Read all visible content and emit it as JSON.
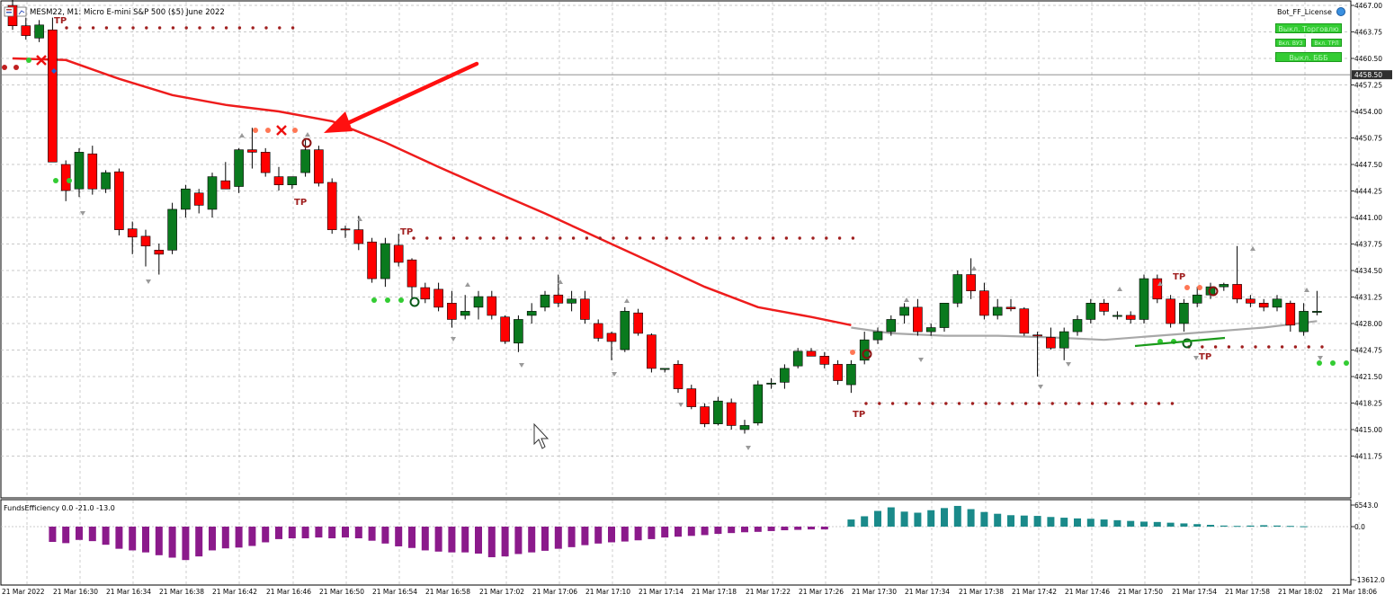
{
  "header": {
    "symbol_line": "MESM22, M1:  Micro E-mini S&P 500 ($5) June 2022"
  },
  "license_label": "Bot_FF_License",
  "panel_buttons": {
    "top": "Выкл. Торговлю",
    "left_small": "Вкл. ВУЗ",
    "right_small": "Вкл. ТРЛ",
    "bottom": "Выкл. БББ"
  },
  "indicator_label": "FundsEfficiency 0.0 -21.0 -13.0",
  "markers": {
    "tp": "TP"
  },
  "price_axis": {
    "ticks": [
      "4467.00",
      "4463.75",
      "4460.50",
      "4457.25",
      "4454.00",
      "4450.75",
      "4447.50",
      "4444.25",
      "4441.00",
      "4437.75",
      "4434.50",
      "4431.25",
      "4428.00",
      "4424.75",
      "4421.50",
      "4418.25",
      "4415.00",
      "4411.75"
    ],
    "current_price": "4458.50"
  },
  "indicator_axis": {
    "ticks": [
      "6543.0",
      "0.0",
      "-13612.0"
    ]
  },
  "time_axis": {
    "ticks": [
      "21 Mar 2022",
      "21 Mar 16:30",
      "21 Mar 16:34",
      "21 Mar 16:38",
      "21 Mar 16:42",
      "21 Mar 16:46",
      "21 Mar 16:50",
      "21 Mar 16:54",
      "21 Mar 16:58",
      "21 Mar 17:02",
      "21 Mar 17:06",
      "21 Mar 17:10",
      "21 Mar 17:14",
      "21 Mar 17:18",
      "21 Mar 17:22",
      "21 Mar 17:26",
      "21 Mar 17:30",
      "21 Mar 17:34",
      "21 Mar 17:38",
      "21 Mar 17:42",
      "21 Mar 17:46",
      "21 Mar 17:50",
      "21 Mar 17:54",
      "21 Mar 17:58",
      "21 Mar 18:02",
      "21 Mar 18:06"
    ]
  },
  "colors": {
    "bull": "#0a7a1e",
    "bear": "#ff0000",
    "ma": "#ee1c1c",
    "ma2": "#a8a8a8",
    "hist_pos": "#1a8a8a",
    "hist_neg": "#8b1a8b",
    "grid": "#b8b8b8",
    "tp": "#a02020"
  },
  "chart_data": [
    {
      "type": "candlestick",
      "ylim": [
        4409.5,
        4467.0
      ],
      "y_ticks": [
        4467.0,
        4463.75,
        4460.5,
        4457.25,
        4454.0,
        4450.75,
        4447.5,
        4444.25,
        4441.0,
        4437.75,
        4434.5,
        4431.25,
        4428.0,
        4424.75,
        4421.5,
        4418.25,
        4415.0,
        4411.75
      ],
      "current_price": 4458.5,
      "candles": [
        {
          "o": 4467.0,
          "h": 4467.8,
          "l": 4464.0,
          "c": 4464.5
        },
        {
          "o": 4464.5,
          "h": 4465.5,
          "l": 4462.8,
          "c": 4463.3
        },
        {
          "o": 4463.0,
          "h": 4465.2,
          "l": 4462.5,
          "c": 4464.6
        },
        {
          "o": 4464.0,
          "h": 4465.5,
          "l": 4448.0,
          "c": 4447.8
        },
        {
          "o": 4447.5,
          "h": 4448.0,
          "l": 4443.0,
          "c": 4444.3
        },
        {
          "o": 4444.5,
          "h": 4449.5,
          "l": 4443.5,
          "c": 4449.0
        },
        {
          "o": 4448.8,
          "h": 4449.8,
          "l": 4443.8,
          "c": 4444.5
        },
        {
          "o": 4444.5,
          "h": 4446.8,
          "l": 4444.0,
          "c": 4446.5
        },
        {
          "o": 4446.6,
          "h": 4447.0,
          "l": 4438.8,
          "c": 4439.5
        },
        {
          "o": 4439.6,
          "h": 4440.5,
          "l": 4436.5,
          "c": 4438.6
        },
        {
          "o": 4438.7,
          "h": 4439.5,
          "l": 4435.0,
          "c": 4437.5
        },
        {
          "o": 4437.0,
          "h": 4437.8,
          "l": 4434.0,
          "c": 4436.5
        },
        {
          "o": 4437.0,
          "h": 4442.8,
          "l": 4436.5,
          "c": 4442.0
        },
        {
          "o": 4442.0,
          "h": 4445.0,
          "l": 4441.0,
          "c": 4444.5
        },
        {
          "o": 4444.0,
          "h": 4444.5,
          "l": 4441.5,
          "c": 4442.5
        },
        {
          "o": 4442.0,
          "h": 4446.5,
          "l": 4441.0,
          "c": 4446.0
        },
        {
          "o": 4445.5,
          "h": 4447.8,
          "l": 4445.0,
          "c": 4444.5
        },
        {
          "o": 4444.8,
          "h": 4449.5,
          "l": 4444.0,
          "c": 4449.3
        },
        {
          "o": 4449.3,
          "h": 4452.0,
          "l": 4447.0,
          "c": 4449.0
        },
        {
          "o": 4449.0,
          "h": 4449.5,
          "l": 4446.0,
          "c": 4446.5
        },
        {
          "o": 4446.0,
          "h": 4447.2,
          "l": 4444.3,
          "c": 4445.0
        },
        {
          "o": 4445.0,
          "h": 4446.0,
          "l": 4444.5,
          "c": 4446.0
        },
        {
          "o": 4446.5,
          "h": 4450.5,
          "l": 4446.0,
          "c": 4449.3
        },
        {
          "o": 4449.3,
          "h": 4449.8,
          "l": 4444.8,
          "c": 4445.2
        },
        {
          "o": 4445.3,
          "h": 4445.8,
          "l": 4439.0,
          "c": 4439.5
        },
        {
          "o": 4439.6,
          "h": 4440.0,
          "l": 4438.5,
          "c": 4439.5
        },
        {
          "o": 4439.5,
          "h": 4441.2,
          "l": 4437.0,
          "c": 4437.8
        },
        {
          "o": 4438.0,
          "h": 4438.5,
          "l": 4433.0,
          "c": 4433.5
        },
        {
          "o": 4433.5,
          "h": 4438.5,
          "l": 4432.5,
          "c": 4437.8
        },
        {
          "o": 4437.6,
          "h": 4439.0,
          "l": 4435.0,
          "c": 4435.5
        },
        {
          "o": 4435.8,
          "h": 4436.0,
          "l": 4431.0,
          "c": 4432.5
        },
        {
          "o": 4432.4,
          "h": 4433.0,
          "l": 4430.5,
          "c": 4431.0
        },
        {
          "o": 4432.2,
          "h": 4433.0,
          "l": 4429.5,
          "c": 4430.0
        },
        {
          "o": 4430.5,
          "h": 4432.0,
          "l": 4427.5,
          "c": 4428.5
        },
        {
          "o": 4429.0,
          "h": 4431.5,
          "l": 4428.5,
          "c": 4429.5
        },
        {
          "o": 4430.0,
          "h": 4432.0,
          "l": 4428.5,
          "c": 4431.3
        },
        {
          "o": 4431.3,
          "h": 4432.0,
          "l": 4428.5,
          "c": 4429.0
        },
        {
          "o": 4428.8,
          "h": 4429.0,
          "l": 4425.5,
          "c": 4425.8
        },
        {
          "o": 4425.6,
          "h": 4429.0,
          "l": 4424.5,
          "c": 4428.5
        },
        {
          "o": 4429.0,
          "h": 4430.5,
          "l": 4428.0,
          "c": 4429.5
        },
        {
          "o": 4430.0,
          "h": 4432.0,
          "l": 4429.5,
          "c": 4431.5
        },
        {
          "o": 4431.5,
          "h": 4434.0,
          "l": 4430.0,
          "c": 4430.5
        },
        {
          "o": 4430.5,
          "h": 4432.0,
          "l": 4429.5,
          "c": 4431.0
        },
        {
          "o": 4431.0,
          "h": 4432.0,
          "l": 4428.0,
          "c": 4428.5
        },
        {
          "o": 4428.0,
          "h": 4428.5,
          "l": 4425.8,
          "c": 4426.2
        },
        {
          "o": 4426.8,
          "h": 4427.0,
          "l": 4423.5,
          "c": 4425.8
        },
        {
          "o": 4424.8,
          "h": 4430.0,
          "l": 4424.5,
          "c": 4429.5
        },
        {
          "o": 4429.3,
          "h": 4429.8,
          "l": 4426.5,
          "c": 4426.8
        },
        {
          "o": 4426.6,
          "h": 4426.8,
          "l": 4422.0,
          "c": 4422.5
        },
        {
          "o": 4422.5,
          "h": 4422.5,
          "l": 4422.0,
          "c": 4422.5
        },
        {
          "o": 4423.0,
          "h": 4423.5,
          "l": 4419.5,
          "c": 4420.0
        },
        {
          "o": 4420.0,
          "h": 4420.5,
          "l": 4417.5,
          "c": 4417.8
        },
        {
          "o": 4417.8,
          "h": 4418.2,
          "l": 4415.3,
          "c": 4415.7
        },
        {
          "o": 4415.7,
          "h": 4419.0,
          "l": 4415.5,
          "c": 4418.5
        },
        {
          "o": 4418.3,
          "h": 4418.8,
          "l": 4415.0,
          "c": 4415.5
        },
        {
          "o": 4415.0,
          "h": 4416.2,
          "l": 4414.5,
          "c": 4415.5
        },
        {
          "o": 4415.8,
          "h": 4421.0,
          "l": 4415.5,
          "c": 4420.5
        },
        {
          "o": 4420.6,
          "h": 4421.3,
          "l": 4420.0,
          "c": 4420.7
        },
        {
          "o": 4420.8,
          "h": 4423.0,
          "l": 4420.0,
          "c": 4422.5
        },
        {
          "o": 4422.8,
          "h": 4425.0,
          "l": 4422.5,
          "c": 4424.6
        },
        {
          "o": 4424.6,
          "h": 4425.0,
          "l": 4424.0,
          "c": 4424.0
        },
        {
          "o": 4424.0,
          "h": 4424.5,
          "l": 4422.5,
          "c": 4423.0
        },
        {
          "o": 4423.0,
          "h": 4423.5,
          "l": 4420.5,
          "c": 4421.0
        },
        {
          "o": 4420.5,
          "h": 4423.5,
          "l": 4419.5,
          "c": 4423.0
        },
        {
          "o": 4423.5,
          "h": 4427.0,
          "l": 4423.0,
          "c": 4426.0
        },
        {
          "o": 4426.0,
          "h": 4427.5,
          "l": 4425.5,
          "c": 4427.0
        },
        {
          "o": 4427.0,
          "h": 4429.0,
          "l": 4426.5,
          "c": 4428.5
        },
        {
          "o": 4429.0,
          "h": 4430.5,
          "l": 4428.0,
          "c": 4430.0
        },
        {
          "o": 4430.0,
          "h": 4431.0,
          "l": 4426.5,
          "c": 4427.0
        },
        {
          "o": 4427.0,
          "h": 4428.0,
          "l": 4426.5,
          "c": 4427.5
        },
        {
          "o": 4427.5,
          "h": 4430.5,
          "l": 4427.0,
          "c": 4430.5
        },
        {
          "o": 4430.5,
          "h": 4434.5,
          "l": 4430.0,
          "c": 4434.0
        },
        {
          "o": 4434.0,
          "h": 4436.0,
          "l": 4431.0,
          "c": 4432.0
        },
        {
          "o": 4432.0,
          "h": 4433.0,
          "l": 4428.5,
          "c": 4429.0
        },
        {
          "o": 4429.0,
          "h": 4431.0,
          "l": 4428.5,
          "c": 4430.0
        },
        {
          "o": 4430.0,
          "h": 4431.0,
          "l": 4429.5,
          "c": 4429.8
        },
        {
          "o": 4429.8,
          "h": 4430.0,
          "l": 4426.5,
          "c": 4426.8
        },
        {
          "o": 4426.6,
          "h": 4427.0,
          "l": 4421.5,
          "c": 4426.5
        },
        {
          "o": 4426.3,
          "h": 4427.5,
          "l": 4424.8,
          "c": 4425.0
        },
        {
          "o": 4425.0,
          "h": 4427.5,
          "l": 4423.5,
          "c": 4427.0
        },
        {
          "o": 4427.0,
          "h": 4429.0,
          "l": 4426.5,
          "c": 4428.5
        },
        {
          "o": 4428.5,
          "h": 4431.0,
          "l": 4428.0,
          "c": 4430.5
        },
        {
          "o": 4430.5,
          "h": 4431.0,
          "l": 4429.0,
          "c": 4429.5
        },
        {
          "o": 4429.0,
          "h": 4429.5,
          "l": 4428.5,
          "c": 4429.0
        },
        {
          "o": 4429.0,
          "h": 4429.5,
          "l": 4428.0,
          "c": 4428.5
        },
        {
          "o": 4428.5,
          "h": 4434.0,
          "l": 4428.0,
          "c": 4433.5
        },
        {
          "o": 4433.5,
          "h": 4434.0,
          "l": 4430.5,
          "c": 4431.0
        },
        {
          "o": 4431.0,
          "h": 4431.5,
          "l": 4427.5,
          "c": 4428.0
        },
        {
          "o": 4428.0,
          "h": 4431.0,
          "l": 4427.0,
          "c": 4430.5
        },
        {
          "o": 4430.5,
          "h": 4432.5,
          "l": 4430.0,
          "c": 4431.5
        },
        {
          "o": 4431.5,
          "h": 4433.0,
          "l": 4431.0,
          "c": 4432.5
        },
        {
          "o": 4432.5,
          "h": 4433.0,
          "l": 4432.0,
          "c": 4432.8
        },
        {
          "o": 4432.8,
          "h": 4437.5,
          "l": 4430.5,
          "c": 4431.0
        },
        {
          "o": 4431.0,
          "h": 4431.5,
          "l": 4430.0,
          "c": 4430.5
        },
        {
          "o": 4430.5,
          "h": 4431.0,
          "l": 4429.5,
          "c": 4430.0
        },
        {
          "o": 4430.0,
          "h": 4431.5,
          "l": 4429.5,
          "c": 4431.0
        },
        {
          "o": 4430.5,
          "h": 4430.8,
          "l": 4427.0,
          "c": 4427.8
        },
        {
          "o": 4427.0,
          "h": 4430.5,
          "l": 4426.5,
          "c": 4429.5
        },
        {
          "o": 4429.5,
          "h": 4432.0,
          "l": 4429.0,
          "c": 4429.5
        }
      ],
      "moving_averages": [
        {
          "name": "",
          "color": "#ee1c1c",
          "points": [
            [
              0,
              4460.5
            ],
            [
              4,
              4460.3
            ],
            [
              8,
              4458.0
            ],
            [
              12,
              4456.0
            ],
            [
              16,
              4454.8
            ],
            [
              20,
              4454.0
            ],
            [
              24,
              4452.8
            ],
            [
              28,
              4450.2
            ],
            [
              32,
              4447.2
            ],
            [
              36,
              4444.3
            ],
            [
              40,
              4441.5
            ],
            [
              44,
              4438.5
            ],
            [
              48,
              4435.5
            ],
            [
              52,
              4432.5
            ],
            [
              56,
              4430.0
            ],
            [
              60,
              4428.8
            ],
            [
              63,
              4427.8
            ]
          ]
        },
        {
          "name": "",
          "color": "#a8a8a8",
          "points": [
            [
              63,
              4427.5
            ],
            [
              66,
              4426.8
            ],
            [
              70,
              4426.5
            ],
            [
              74,
              4426.5
            ],
            [
              78,
              4426.3
            ],
            [
              82,
              4426.0
            ],
            [
              86,
              4426.5
            ],
            [
              90,
              4427.0
            ],
            [
              94,
              4427.5
            ],
            [
              98,
              4428.3
            ]
          ]
        }
      ]
    },
    {
      "type": "bar",
      "title": "FundsEfficiency 0.0 -21.0 -13.0",
      "ylim": [
        -13612.0,
        6543.0
      ],
      "y_ticks": [
        6543.0,
        0.0,
        -13612.0
      ],
      "values": [
        0,
        0,
        0,
        -3800,
        -4100,
        -3300,
        -3600,
        -4500,
        -5500,
        -5900,
        -6400,
        -7100,
        -7700,
        -8300,
        -7400,
        -5900,
        -5400,
        -5200,
        -4800,
        -3900,
        -3100,
        -2900,
        -2900,
        -2700,
        -2900,
        -2700,
        -2900,
        -3500,
        -4200,
        -4900,
        -5300,
        -5900,
        -6200,
        -6400,
        -6400,
        -6700,
        -7600,
        -7400,
        -6800,
        -6400,
        -6000,
        -5500,
        -5100,
        -4600,
        -4200,
        -3900,
        -3700,
        -3400,
        -3100,
        -2700,
        -2500,
        -2300,
        -2100,
        -1800,
        -1600,
        -1400,
        -1300,
        -1100,
        -900,
        -800,
        -700,
        -700,
        0,
        2000,
        2900,
        4400,
        5400,
        4200,
        3900,
        4600,
        5200,
        5800,
        4900,
        4100,
        3600,
        3200,
        3100,
        3000,
        2700,
        2500,
        2300,
        2200,
        2000,
        1800,
        1600,
        1400,
        1300,
        1100,
        900,
        700,
        500,
        300,
        200,
        300,
        400,
        300,
        200,
        100,
        0
      ]
    }
  ]
}
